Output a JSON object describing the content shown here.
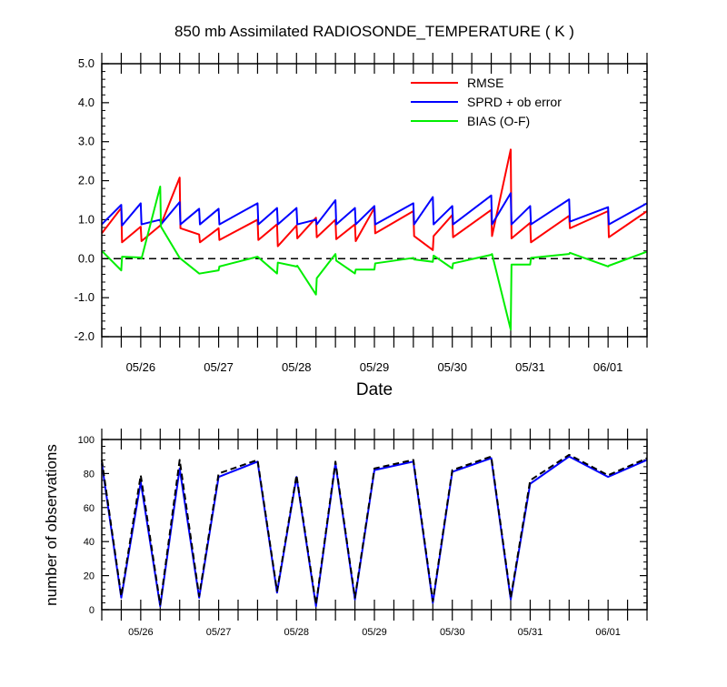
{
  "chart_data": [
    {
      "type": "line",
      "title": "850 mb Assimilated RADIOSONDE_TEMPERATURE ( K )",
      "xlabel": "Date",
      "ylabel": "",
      "ylim": [
        -2.0,
        5.0
      ],
      "yticks": [
        "-2.0",
        "-1.0",
        "0.0",
        "1.0",
        "2.0",
        "3.0",
        "4.0",
        "5.0"
      ],
      "xticks": [
        "05/26",
        "05/27",
        "05/28",
        "05/29",
        "05/30",
        "05/31",
        "06/01"
      ],
      "x_day_range": [
        25.5,
        32.5
      ],
      "legend_position": "top-right",
      "zero_line": "dashed",
      "series": [
        {
          "name": "RMSE",
          "color": "#ff0000",
          "x": [
            25.5,
            25.75,
            25.76,
            26.0,
            26.01,
            26.25,
            26.26,
            26.5,
            26.51,
            26.75,
            26.76,
            27.0,
            27.01,
            27.5,
            27.51,
            27.75,
            27.76,
            28.0,
            28.01,
            28.25,
            28.26,
            28.5,
            28.51,
            28.75,
            28.76,
            29.0,
            29.01,
            29.5,
            29.51,
            29.75,
            29.76,
            30.0,
            30.01,
            30.5,
            30.51,
            30.75,
            30.76,
            31.0,
            31.01,
            31.5,
            31.51,
            32.0,
            32.01,
            32.5
          ],
          "values": [
            0.65,
            1.3,
            0.42,
            0.82,
            0.45,
            0.85,
            0.88,
            2.08,
            0.78,
            0.62,
            0.42,
            0.78,
            0.48,
            1.0,
            0.48,
            0.88,
            0.32,
            0.85,
            0.52,
            1.05,
            0.55,
            1.0,
            0.5,
            0.88,
            0.45,
            1.3,
            0.65,
            1.22,
            0.58,
            0.22,
            0.58,
            1.12,
            0.55,
            1.25,
            0.58,
            2.8,
            0.52,
            0.92,
            0.42,
            1.1,
            0.78,
            1.22,
            0.55,
            1.22
          ]
        },
        {
          "name": "SPRD + ob error",
          "color": "#0000ff",
          "x": [
            25.5,
            25.75,
            25.76,
            26.0,
            26.01,
            26.25,
            26.26,
            26.5,
            26.51,
            26.75,
            26.76,
            27.0,
            27.01,
            27.5,
            27.51,
            27.75,
            27.76,
            28.0,
            28.01,
            28.25,
            28.26,
            28.5,
            28.51,
            28.75,
            28.76,
            29.0,
            29.01,
            29.5,
            29.51,
            29.75,
            29.76,
            30.0,
            30.01,
            30.5,
            30.51,
            30.75,
            30.76,
            31.0,
            31.01,
            31.5,
            31.51,
            32.0,
            32.01,
            32.5
          ],
          "values": [
            0.88,
            1.38,
            0.85,
            1.42,
            0.88,
            1.0,
            0.88,
            1.45,
            0.88,
            1.28,
            0.88,
            1.28,
            0.88,
            1.42,
            0.88,
            1.3,
            0.88,
            1.3,
            0.88,
            1.0,
            0.88,
            1.5,
            0.88,
            1.3,
            0.88,
            1.35,
            0.88,
            1.42,
            0.88,
            1.58,
            0.88,
            1.35,
            0.88,
            1.62,
            0.88,
            1.68,
            0.88,
            1.35,
            0.88,
            1.52,
            0.95,
            1.32,
            0.88,
            1.42
          ]
        },
        {
          "name": "BIAS (O-F)",
          "color": "#00ee00",
          "x": [
            25.5,
            25.75,
            25.76,
            26.0,
            26.01,
            26.25,
            26.26,
            26.5,
            26.75,
            26.76,
            27.0,
            27.01,
            27.5,
            27.75,
            27.76,
            28.0,
            28.01,
            28.25,
            28.26,
            28.5,
            28.51,
            28.75,
            28.76,
            29.0,
            29.01,
            29.5,
            29.51,
            29.75,
            29.76,
            30.0,
            30.01,
            30.5,
            30.51,
            30.75,
            30.76,
            31.0,
            31.01,
            31.5,
            31.51,
            32.0,
            32.01,
            32.5
          ],
          "values": [
            0.2,
            -0.3,
            0.05,
            0.03,
            0.0,
            1.85,
            0.82,
            0.02,
            -0.38,
            -0.38,
            -0.3,
            -0.2,
            0.05,
            -0.38,
            -0.1,
            -0.2,
            -0.18,
            -0.92,
            -0.5,
            0.12,
            -0.05,
            -0.38,
            -0.28,
            -0.28,
            -0.12,
            0.02,
            -0.02,
            -0.08,
            0.08,
            -0.25,
            -0.12,
            0.1,
            0.12,
            -1.82,
            -0.15,
            -0.15,
            0.02,
            0.12,
            0.15,
            -0.2,
            -0.18,
            0.18
          ]
        }
      ]
    },
    {
      "type": "line",
      "title": "",
      "xlabel": "",
      "ylabel": "number of observations",
      "ylim": [
        0,
        100
      ],
      "yticks": [
        "0",
        "20",
        "40",
        "60",
        "80",
        "100"
      ],
      "xticks": [
        "05/26",
        "05/27",
        "05/28",
        "05/29",
        "05/30",
        "05/31",
        "06/01"
      ],
      "x_day_range": [
        25.5,
        32.5
      ],
      "series": [
        {
          "style": "solid",
          "color": "#0000ff",
          "x": [
            25.5,
            25.75,
            26.0,
            26.25,
            26.5,
            26.75,
            27.0,
            27.5,
            27.75,
            28.0,
            28.25,
            28.5,
            28.75,
            29.0,
            29.5,
            29.75,
            30.0,
            30.5,
            30.75,
            31.0,
            31.5,
            32.0,
            32.5
          ],
          "values": [
            86,
            7,
            75,
            2,
            83,
            7,
            78,
            87,
            10,
            78,
            2,
            86,
            6,
            82,
            87,
            4,
            81,
            89,
            6,
            74,
            90,
            78,
            88
          ]
        },
        {
          "style": "dashed",
          "color": "#000000",
          "x": [
            25.5,
            25.75,
            26.0,
            26.25,
            26.5,
            26.75,
            27.0,
            27.5,
            27.75,
            28.0,
            28.25,
            28.5,
            28.75,
            29.0,
            29.5,
            29.75,
            30.0,
            30.5,
            30.75,
            31.0,
            31.5,
            32.0,
            32.5
          ],
          "values": [
            88,
            8,
            79,
            3,
            88,
            8,
            80,
            88,
            11,
            79,
            3,
            87,
            7,
            83,
            88,
            5,
            82,
            90,
            7,
            76,
            91,
            79,
            89
          ]
        }
      ]
    }
  ]
}
